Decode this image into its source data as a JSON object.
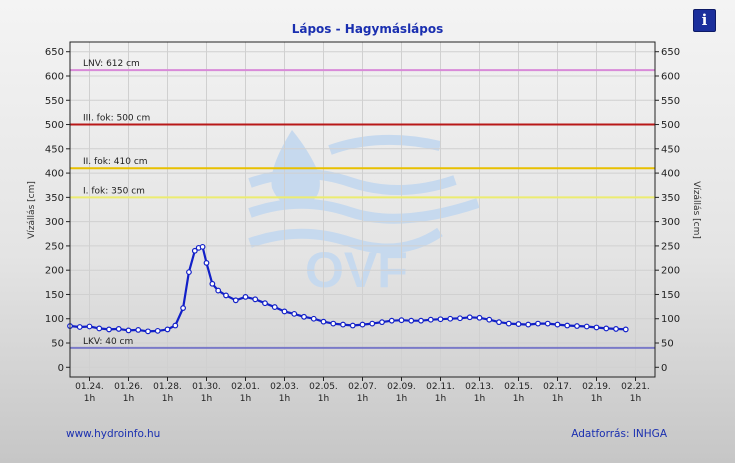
{
  "header": {
    "title": "Lápos - Hagymáslápos",
    "info_icon": "info-icon",
    "info_label": "i"
  },
  "footer": {
    "website": "www.hydroinfo.hu",
    "source": "Adatforrás: INHGA"
  },
  "watermark": {
    "text": "OVF",
    "color": "#c6d9ee"
  },
  "colors": {
    "series": "#1220c8",
    "grid": "#d0d0d0",
    "lnv": "#d88ad8",
    "level3": "#b81818",
    "level2": "#e8c000",
    "level1": "#ecec70",
    "lkv": "#7a7ac8"
  },
  "chart_data": {
    "type": "line",
    "title": "Lápos - Hagymáslápos",
    "ylabel": "Vízállás [cm]",
    "ylim": [
      -20,
      670
    ],
    "y_ticks": [
      0,
      50,
      100,
      150,
      200,
      250,
      300,
      350,
      400,
      450,
      500,
      550,
      600,
      650
    ],
    "xlim": [
      0,
      30
    ],
    "x_ticks": [
      {
        "day": 1,
        "date": "01.24.",
        "hour": "1h"
      },
      {
        "day": 3,
        "date": "01.26.",
        "hour": "1h"
      },
      {
        "day": 5,
        "date": "01.28.",
        "hour": "1h"
      },
      {
        "day": 7,
        "date": "01.30.",
        "hour": "1h"
      },
      {
        "day": 9,
        "date": "02.01.",
        "hour": "1h"
      },
      {
        "day": 11,
        "date": "02.03.",
        "hour": "1h"
      },
      {
        "day": 13,
        "date": "02.05.",
        "hour": "1h"
      },
      {
        "day": 15,
        "date": "02.07.",
        "hour": "1h"
      },
      {
        "day": 17,
        "date": "02.09.",
        "hour": "1h"
      },
      {
        "day": 19,
        "date": "02.11.",
        "hour": "1h"
      },
      {
        "day": 21,
        "date": "02.13.",
        "hour": "1h"
      },
      {
        "day": 23,
        "date": "02.15.",
        "hour": "1h"
      },
      {
        "day": 25,
        "date": "02.17.",
        "hour": "1h"
      },
      {
        "day": 27,
        "date": "02.19.",
        "hour": "1h"
      },
      {
        "day": 29,
        "date": "02.21.",
        "hour": "1h"
      }
    ],
    "thresholds": [
      {
        "label": "LNV: 612 cm",
        "value": 612,
        "color": "#d88ad8"
      },
      {
        "label": "III. fok: 500 cm",
        "value": 500,
        "color": "#b81818"
      },
      {
        "label": "II. fok: 410 cm",
        "value": 410,
        "color": "#e8c000"
      },
      {
        "label": "I. fok: 350 cm",
        "value": 350,
        "color": "#ecec70"
      },
      {
        "label": "LKV: 40 cm",
        "value": 40,
        "color": "#7a7ac8"
      }
    ],
    "series": [
      {
        "x": [
          0.0,
          0.5,
          1.0,
          1.5,
          2.0,
          2.5,
          3.0,
          3.5,
          4.0,
          4.5,
          5.0,
          5.4,
          5.8,
          6.1,
          6.4,
          6.6,
          6.8,
          7.0,
          7.3,
          7.6,
          8.0,
          8.5,
          9.0,
          9.5,
          10.0,
          10.5,
          11.0,
          11.5,
          12.0,
          12.5,
          13.0,
          13.5,
          14.0,
          14.5,
          15.0,
          15.5,
          16.0,
          16.5,
          17.0,
          17.5,
          18.0,
          18.5,
          19.0,
          19.5,
          20.0,
          20.5,
          21.0,
          21.5,
          22.0,
          22.5,
          23.0,
          23.5,
          24.0,
          24.5,
          25.0,
          25.5,
          26.0,
          26.5,
          27.0,
          27.5,
          28.0,
          28.5
        ],
        "values": [
          85,
          83,
          84,
          80,
          78,
          79,
          76,
          77,
          74,
          75,
          78,
          86,
          122,
          196,
          240,
          246,
          248,
          215,
          172,
          158,
          148,
          138,
          145,
          140,
          132,
          124,
          115,
          110,
          104,
          100,
          94,
          90,
          88,
          86,
          88,
          90,
          93,
          96,
          97,
          96,
          96,
          98,
          99,
          100,
          101,
          103,
          102,
          98,
          93,
          90,
          89,
          88,
          90,
          90,
          88,
          86,
          85,
          84,
          82,
          80,
          79,
          78
        ]
      }
    ]
  }
}
